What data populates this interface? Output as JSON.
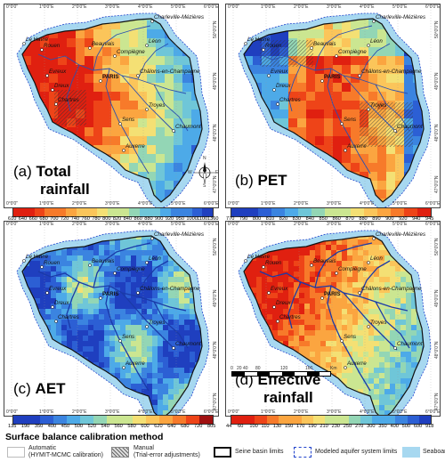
{
  "panels": [
    {
      "id": "a",
      "letter": "(a)",
      "word": "Total",
      "word2": "rainfall",
      "colors": [
        "#e02010",
        "#ee4418",
        "#f77a2a",
        "#fba540",
        "#fbc55a",
        "#f4e074",
        "#cbe691",
        "#93d6b5",
        "#6fc6d8",
        "#4daae8",
        "#3b84e0",
        "#2c5fd4",
        "#1f3fbf"
      ],
      "labels": [
        "610",
        "640",
        "660",
        "680",
        "700",
        "720",
        "740",
        "760",
        "780",
        "800",
        "820",
        "840",
        "860",
        "880",
        "900",
        "920",
        "950",
        "1000",
        "1100",
        "1360"
      ]
    },
    {
      "id": "b",
      "letter": "(b)",
      "word": "PET",
      "word2": "",
      "colors": [
        "#1f3fbf",
        "#2c5fd4",
        "#3b84e0",
        "#4daae8",
        "#6fc6d8",
        "#93d6b5",
        "#cbe691",
        "#f4e074",
        "#fbc55a",
        "#fba540",
        "#f77a2a",
        "#ee4418",
        "#e02010"
      ],
      "labels": [
        "770",
        "790",
        "800",
        "810",
        "820",
        "830",
        "840",
        "850",
        "860",
        "870",
        "880",
        "890",
        "900",
        "920",
        "940",
        "945"
      ]
    },
    {
      "id": "c",
      "letter": "(c)",
      "word": "AET",
      "word2": "",
      "colors": [
        "#1f3fbf",
        "#2c5fd4",
        "#3b84e0",
        "#4daae8",
        "#6fc6d8",
        "#93d6b5",
        "#cbe691",
        "#f4e074",
        "#fbc55a",
        "#fba540",
        "#f77a2a",
        "#ee4418",
        "#a01010"
      ],
      "labels": [
        "135",
        "190",
        "350",
        "400",
        "450",
        "500",
        "520",
        "540",
        "560",
        "580",
        "600",
        "620",
        "640",
        "680",
        "720",
        "805"
      ]
    },
    {
      "id": "d",
      "letter": "(d)",
      "word": "Effective",
      "word2": "rainfall",
      "colors": [
        "#e02010",
        "#ee4418",
        "#f77a2a",
        "#fba540",
        "#fbc55a",
        "#f4e074",
        "#cbe691",
        "#93d6b5",
        "#6fc6d8",
        "#4daae8",
        "#3b84e0",
        "#2c5fd4",
        "#1f3fbf"
      ],
      "labels": [
        "44",
        "60",
        "100",
        "110",
        "130",
        "150",
        "170",
        "190",
        "210",
        "230",
        "250",
        "270",
        "300",
        "350",
        "400",
        "500",
        "600",
        "918"
      ]
    }
  ],
  "cities": [
    "Le Havre",
    "Rouen",
    "Beauvais",
    "Léon",
    "Charleville-Mézières",
    "Compiègne",
    "Evreux",
    "Dreux",
    "PARIS",
    "Châlons-en-Champagne",
    "Chartres",
    "Troyes",
    "Sens",
    "Chaumont",
    "Auxerre"
  ],
  "lon_ticks": [
    "0°0'0\"",
    "1°0'0\"E",
    "2°0'0\"E",
    "3°0'0\"E",
    "4°0'0\"E",
    "5°0'0\"E",
    "6°0'0\"E"
  ],
  "lat_ticks": [
    "50°0'0\"N",
    "49°0'0\"N",
    "48°0'0\"N",
    "47°0'0\"N"
  ],
  "scale_labels": [
    "0",
    "20",
    "40",
    "80",
    "120",
    "160",
    "Km"
  ],
  "compass": {
    "n": "N",
    "s": "S",
    "e": "E",
    "w": "W"
  },
  "legend": {
    "title": "Surface balance calibration method",
    "automatic_1": "Automatic",
    "automatic_2": "(HYMIT-MCMC calibration)",
    "manual_1": "Manual",
    "manual_2": "(Trial-error adjustments)",
    "basin": "Seine basin limits",
    "aquifer": "Modeled aquifer system limits",
    "seaboard": "Seaboard"
  }
}
